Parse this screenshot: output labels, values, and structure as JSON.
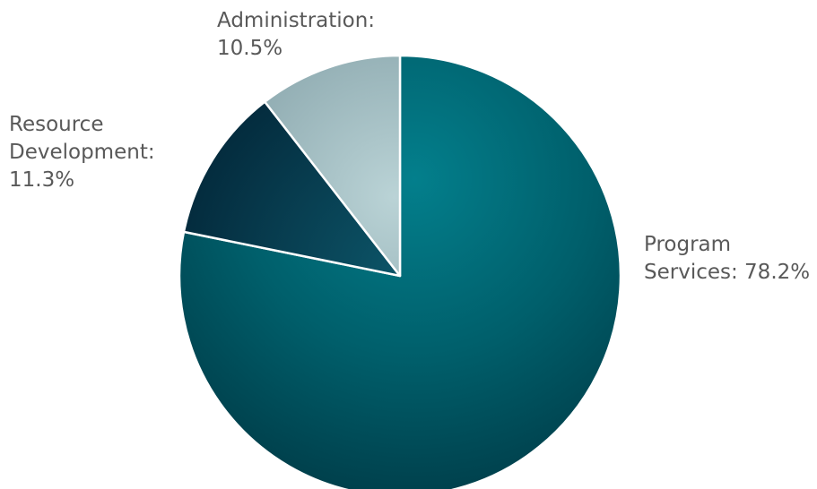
{
  "chart_data": {
    "type": "pie",
    "title": "",
    "slices": [
      {
        "name": "Program Services",
        "value": 78.2,
        "label_lines": [
          "Program",
          "Services: 78.2%"
        ],
        "color": "#00606c"
      },
      {
        "name": "Resource Development",
        "value": 11.3,
        "label_lines": [
          "Resource",
          "Development:",
          "11.3%"
        ],
        "color": "#0e4a5c"
      },
      {
        "name": "Administration",
        "value": 10.5,
        "label_lines": [
          "Administration:",
          "10.5%"
        ],
        "color": "#a3bcc1"
      }
    ]
  }
}
